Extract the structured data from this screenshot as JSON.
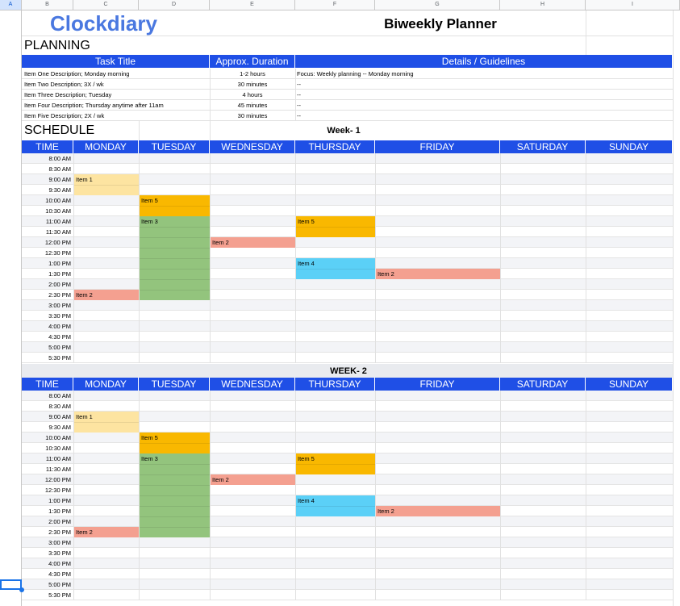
{
  "sheet": {
    "column_headers": [
      "A",
      "B",
      "C",
      "D",
      "E",
      "F",
      "G",
      "H",
      "I"
    ],
    "logo_text": "Clockdiary",
    "title": "Biweekly Planner"
  },
  "planning": {
    "section_title": "PLANNING",
    "headers": [
      "Task Title",
      "Approx. Duration",
      "Details / Guidelines"
    ],
    "rows": [
      {
        "task": "Item One Description;  Monday morning",
        "duration": "1-2 hours",
        "details": "Focus: Weekly planning -- Monday morning"
      },
      {
        "task": "Item Two Description;  3X / wk",
        "duration": "30 minutes",
        "details": "--"
      },
      {
        "task": "Item Three Description;  Tuesday",
        "duration": "4 hours",
        "details": "--"
      },
      {
        "task": "Item Four Description;  Thursday anytime after 11am",
        "duration": "45 minutes",
        "details": "--"
      },
      {
        "task": "Item Five Description;  2X / wk",
        "duration": "30 minutes",
        "details": "--"
      }
    ]
  },
  "schedule": {
    "section_title": "SCHEDULE",
    "day_headers": [
      "TIME",
      "MONDAY",
      "TUESDAY",
      "WEDNESDAY",
      "THURSDAY",
      "FRIDAY",
      "SATURDAY",
      "SUNDAY"
    ],
    "times": [
      "8:00 AM",
      "8:30 AM",
      "9:00 AM",
      "9:30 AM",
      "10:00 AM",
      "10:30 AM",
      "11:00 AM",
      "11:30 AM",
      "12:00 PM",
      "12:30 PM",
      "1:00 PM",
      "1:30 PM",
      "2:00 PM",
      "2:30 PM",
      "3:00 PM",
      "3:30 PM",
      "4:00 PM",
      "4:30 PM",
      "5:00 PM",
      "5:30 PM"
    ],
    "weeks": [
      {
        "label": "Week- 1"
      },
      {
        "label": "WEEK- 2"
      }
    ],
    "blocks": [
      {
        "day": 1,
        "start": 2,
        "span": 2,
        "label": "Item 1",
        "color": "#fde4a1"
      },
      {
        "day": 2,
        "start": 4,
        "span": 2,
        "label": "Item 5",
        "color": "#f9b800"
      },
      {
        "day": 2,
        "start": 6,
        "span": 8,
        "label": "Item 3",
        "color": "#93c47d"
      },
      {
        "day": 4,
        "start": 6,
        "span": 2,
        "label": "Item 5",
        "color": "#f9b800"
      },
      {
        "day": 3,
        "start": 8,
        "span": 1,
        "label": "Item 2",
        "color": "#f4a090"
      },
      {
        "day": 4,
        "start": 10,
        "span": 2,
        "label": "Item 4",
        "color": "#5bd0f7"
      },
      {
        "day": 5,
        "start": 11,
        "span": 1,
        "label": "Item 2",
        "color": "#f4a090"
      },
      {
        "day": 1,
        "start": 13,
        "span": 1,
        "label": "Item 2",
        "color": "#f4a090"
      }
    ]
  },
  "colors": {
    "header_blue": "#1f4fe6",
    "stripe": "#f3f4f7"
  }
}
